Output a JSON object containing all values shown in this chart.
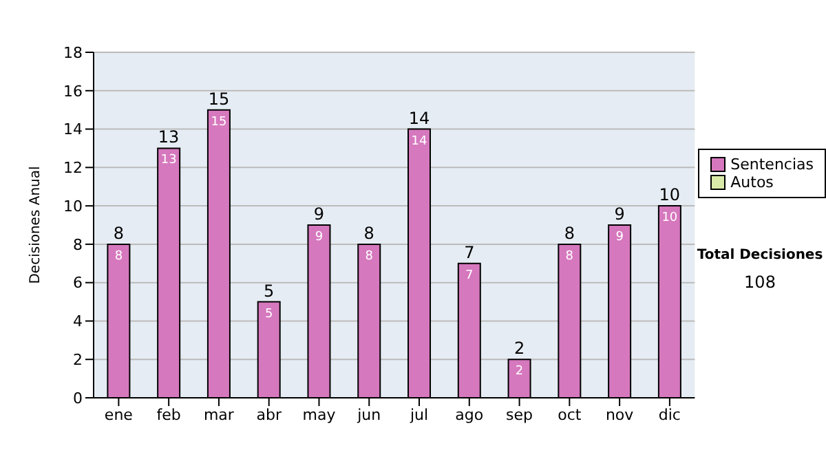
{
  "chart_data": {
    "type": "bar",
    "stacked": true,
    "ylabel": "Decisiones Anual",
    "categories": [
      "ene",
      "feb",
      "mar",
      "abr",
      "may",
      "jun",
      "jul",
      "ago",
      "sep",
      "oct",
      "nov",
      "dic"
    ],
    "series": [
      {
        "name": "Sentencias",
        "color": "#d678be",
        "values": [
          8,
          13,
          15,
          5,
          9,
          8,
          14,
          7,
          2,
          8,
          9,
          10
        ]
      },
      {
        "name": "Autos",
        "color": "#d9eaa8",
        "values": [
          null,
          null,
          null,
          null,
          null,
          null,
          null,
          null,
          null,
          null,
          null,
          null
        ]
      }
    ],
    "data_labels": true,
    "totals": [
      "8",
      "13",
      "15",
      "5",
      "9",
      "8",
      "14",
      "7",
      "2",
      "8",
      "9",
      "10"
    ],
    "ylim": [
      0,
      18
    ],
    "yticks": [
      0,
      2,
      4,
      6,
      8,
      10,
      12,
      14,
      16,
      18
    ],
    "grid": "y",
    "legend": "right",
    "annotations": [
      "Total Decisiones",
      "108"
    ]
  }
}
